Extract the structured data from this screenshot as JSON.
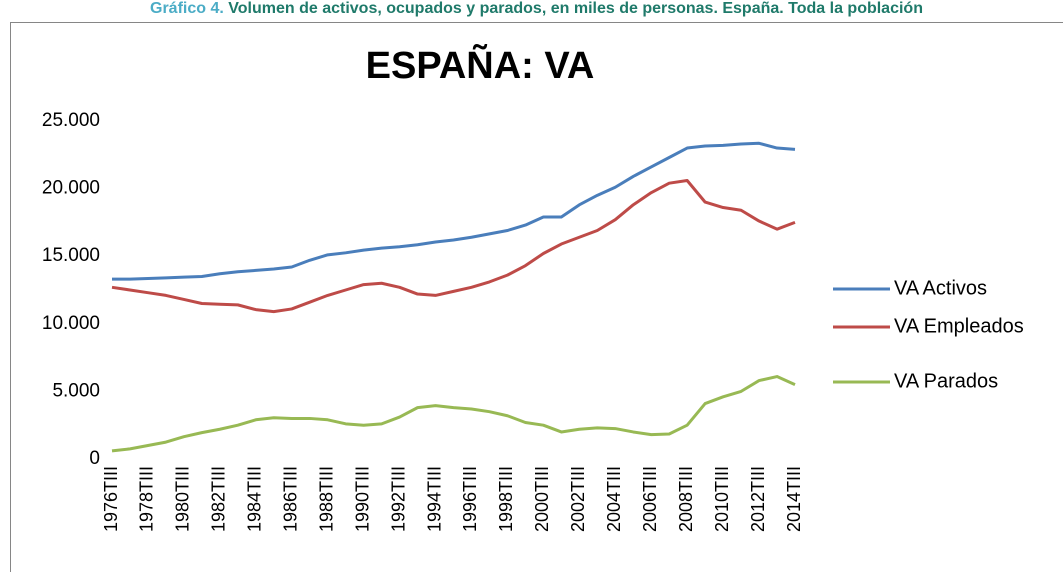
{
  "heading_label": "Gráfico 4.",
  "heading_text": "Volumen de activos, ocupados y parados, en miles de personas. España. Toda la población",
  "chart_data": {
    "type": "line",
    "title": "ESPAÑA: VA",
    "categories": [
      "1976TIII",
      null,
      "1978TIII",
      null,
      "1980TIII",
      null,
      "1982TIII",
      null,
      "1984TIII",
      null,
      "1986TIII",
      null,
      "1988TIII",
      null,
      "1990TIII",
      null,
      "1992TIII",
      null,
      "1994TIII",
      null,
      "1996TIII",
      null,
      "1998TIII",
      null,
      "2000TIII",
      null,
      "2002TIII",
      null,
      "2004TIII",
      null,
      "2006TIII",
      null,
      "2008TIII",
      null,
      "2010TIII",
      null,
      "2012TIII",
      null,
      "2014TIII"
    ],
    "series": [
      {
        "name": "VA Activos",
        "color": "#4a7ebb",
        "values": [
          13300,
          13300,
          13350,
          13400,
          13450,
          13500,
          13700,
          13850,
          13950,
          14050,
          14200,
          14700,
          15100,
          15250,
          15450,
          15600,
          15700,
          15850,
          16050,
          16200,
          16400,
          16650,
          16900,
          17300,
          17900,
          17900,
          18800,
          19500,
          20100,
          20900,
          21600,
          22300,
          23000,
          23150,
          23200,
          23300,
          23350,
          23000,
          22900
        ]
      },
      {
        "name": "VA Empleados",
        "color": "#be4b48",
        "values": [
          12700,
          12500,
          12300,
          12100,
          11800,
          11500,
          11450,
          11400,
          11050,
          10900,
          11100,
          11600,
          12100,
          12500,
          12900,
          13000,
          12700,
          12200,
          12100,
          12400,
          12700,
          13100,
          13600,
          14300,
          15200,
          15900,
          16400,
          16900,
          17700,
          18800,
          19700,
          20400,
          20600,
          19000,
          18600,
          18400,
          17600,
          17000,
          17500
        ]
      },
      {
        "name": "VA Parados",
        "color": "#98b954",
        "values": [
          600,
          750,
          1000,
          1250,
          1650,
          1950,
          2200,
          2500,
          2900,
          3050,
          3000,
          3000,
          2900,
          2600,
          2500,
          2600,
          3100,
          3800,
          3950,
          3800,
          3700,
          3500,
          3200,
          2700,
          2500,
          2000,
          2200,
          2300,
          2250,
          2000,
          1800,
          1850,
          2500,
          4100,
          4600,
          5000,
          5800,
          6100,
          5500
        ]
      }
    ],
    "ylim": [
      0,
      25000
    ],
    "yticks": [
      0,
      {
        "value": 5000,
        "label": "5.000"
      },
      {
        "value": 10000,
        "label": "10.000"
      },
      {
        "value": 15000,
        "label": "15.000"
      },
      {
        "value": 20000,
        "label": "20.000"
      },
      {
        "value": 25000,
        "label": "25.000"
      }
    ],
    "grid": false,
    "legend": "right"
  }
}
